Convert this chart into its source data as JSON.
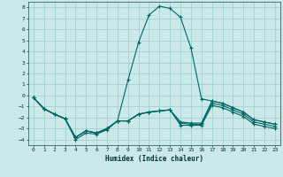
{
  "xlabel": "Humidex (Indice chaleur)",
  "xlim": [
    -0.5,
    23.5
  ],
  "ylim": [
    -4.5,
    8.5
  ],
  "xticks": [
    0,
    1,
    2,
    3,
    4,
    5,
    6,
    7,
    8,
    9,
    10,
    11,
    12,
    13,
    14,
    15,
    16,
    17,
    18,
    19,
    20,
    21,
    22,
    23
  ],
  "yticks": [
    -4,
    -3,
    -2,
    -1,
    0,
    1,
    2,
    3,
    4,
    5,
    6,
    7,
    8
  ],
  "background_color": "#cce9e9",
  "grid_color": "#99cccc",
  "line_color": "#006666",
  "line1_x": [
    0,
    1,
    2,
    3,
    4,
    5,
    6,
    7,
    8,
    9,
    10,
    11,
    12,
    13,
    14,
    15,
    16,
    17,
    18,
    19,
    20,
    21,
    22,
    23
  ],
  "line1_y": [
    -0.2,
    -1.2,
    -1.7,
    -2.1,
    -4.0,
    -3.4,
    -3.5,
    -3.1,
    -2.3,
    1.4,
    4.8,
    7.3,
    8.1,
    7.9,
    7.1,
    4.3,
    -0.3,
    -0.5,
    -0.7,
    -1.1,
    -1.5,
    -2.2,
    -2.4,
    -2.6
  ],
  "line2_x": [
    0,
    1,
    2,
    3,
    4,
    5,
    6,
    7,
    8,
    9,
    10,
    11,
    12,
    13,
    14,
    15,
    16,
    17,
    18,
    19,
    20,
    21,
    22,
    23
  ],
  "line2_y": [
    -0.2,
    -1.2,
    -1.7,
    -2.1,
    -3.8,
    -3.2,
    -3.4,
    -3.0,
    -2.3,
    -2.3,
    -1.7,
    -1.5,
    -1.4,
    -1.3,
    -2.4,
    -2.5,
    -2.5,
    -0.5,
    -0.7,
    -1.1,
    -1.5,
    -2.2,
    -2.4,
    -2.6
  ],
  "line3_x": [
    0,
    1,
    2,
    3,
    4,
    5,
    6,
    7,
    8,
    9,
    10,
    11,
    12,
    13,
    14,
    15,
    16,
    17,
    18,
    19,
    20,
    21,
    22,
    23
  ],
  "line3_y": [
    -0.2,
    -1.2,
    -1.7,
    -2.1,
    -3.8,
    -3.2,
    -3.4,
    -3.0,
    -2.3,
    -2.3,
    -1.7,
    -1.5,
    -1.4,
    -1.3,
    -2.5,
    -2.6,
    -2.6,
    -0.7,
    -0.9,
    -1.3,
    -1.7,
    -2.4,
    -2.6,
    -2.8
  ],
  "line4_x": [
    0,
    1,
    2,
    3,
    4,
    5,
    6,
    7,
    8,
    9,
    10,
    11,
    12,
    13,
    14,
    15,
    16,
    17,
    18,
    19,
    20,
    21,
    22,
    23
  ],
  "line4_y": [
    -0.2,
    -1.2,
    -1.7,
    -2.1,
    -3.8,
    -3.2,
    -3.4,
    -3.0,
    -2.3,
    -2.3,
    -1.7,
    -1.5,
    -1.4,
    -1.3,
    -2.7,
    -2.7,
    -2.7,
    -0.9,
    -1.1,
    -1.5,
    -1.9,
    -2.6,
    -2.8,
    -3.0
  ]
}
